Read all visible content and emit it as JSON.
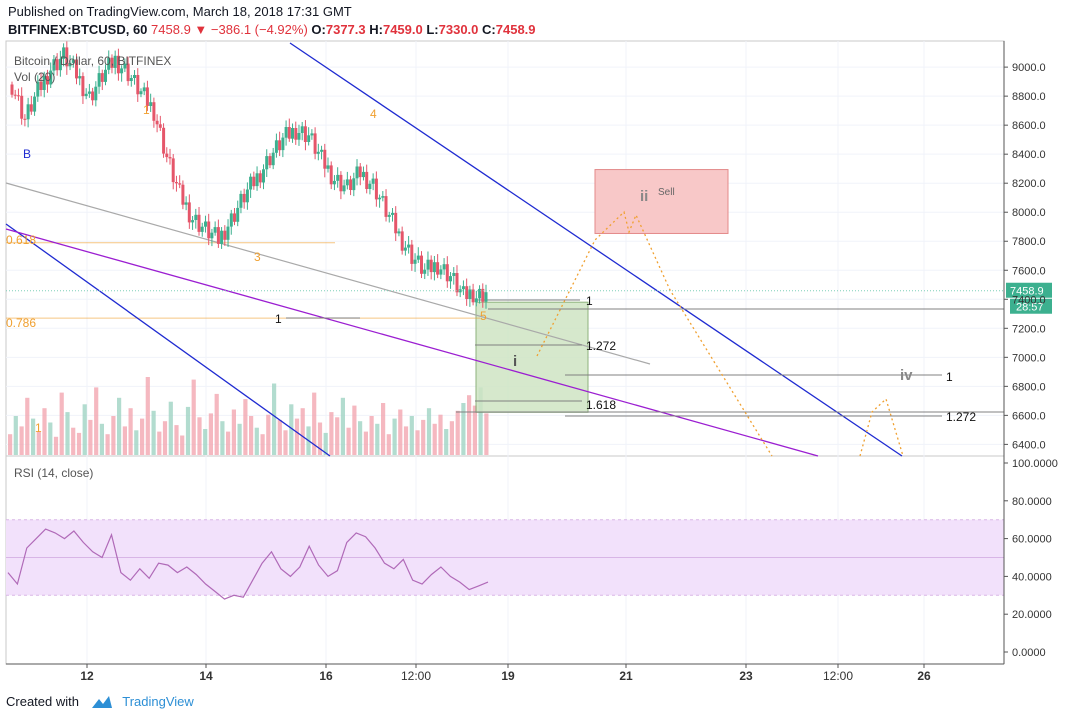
{
  "header": {
    "published": "Published on TradingView.com, March 18, 2018 17:31 GMT",
    "symbol": "BITFINEX:BTCUSD, 60",
    "price": "7458.9",
    "change": "−386.1 (−4.92%)",
    "ohlc": {
      "o_label": "O:",
      "o": "7377.3",
      "h_label": "H:",
      "h": "7459.0",
      "l_label": "L:",
      "l": "7330.0",
      "c_label": "C:",
      "c": "7458.9"
    }
  },
  "legend": {
    "main": "Bitcoin / Dollar, 60, BITFINEX",
    "volume": "Vol (20)",
    "rsi": "RSI (14, close)"
  },
  "footer": {
    "created_with": "Created with",
    "brand": "TradingView"
  },
  "colors": {
    "up": "#3cb08f",
    "down": "#e5566a",
    "trend_blue": "#1f2bd1",
    "purple": "#9b1ed1",
    "gray_line": "#a9a9a9",
    "fib_orange": "#f0a030",
    "sell_box": "#f8c8c8",
    "target_box": "#cfe5c4",
    "rsi_band": "#f2e1fb",
    "rsi_line": "#b06ab8",
    "price_tag": "#3cb08f"
  },
  "chart_data": {
    "type": "candlestick",
    "y_range": [
      6320,
      9180
    ],
    "y_ticks": [
      "9000.0",
      "8800.0",
      "8600.0",
      "8400.0",
      "8200.0",
      "8000.0",
      "7800.0",
      "7600.0",
      "7400.0",
      "7200.0",
      "7000.0",
      "6800.0",
      "6600.0",
      "6400.0"
    ],
    "x_ticks": [
      "12",
      "14",
      "16",
      "12:00",
      "19",
      "21",
      "23",
      "12:00",
      "26"
    ],
    "last_price_tag": "7458.9",
    "countdown_tag": "28:57",
    "wave_labels": [
      "B",
      "1",
      "3",
      "4",
      "5",
      "1",
      "i",
      "ii",
      "iv"
    ],
    "fib_labels": [
      {
        "text": "0.618",
        "price": 7790
      },
      {
        "text": "0.786",
        "price": 7270
      }
    ],
    "projection_levels": [
      {
        "text": "1",
        "price": 7395
      },
      {
        "text": "1.272",
        "price": 7085
      },
      {
        "text": "1.618",
        "price": 6690
      },
      {
        "text": "1",
        "price": 6880
      },
      {
        "text": "1.272",
        "price": 6605
      },
      {
        "text": "1",
        "price": 7280
      }
    ],
    "sell_zone": {
      "label": "Sell",
      "price_high": 8170,
      "price_low": 7950
    },
    "candles_close_path": [
      8880,
      8640,
      8830,
      8990,
      9080,
      8950,
      8790,
      8940,
      9050,
      8960,
      8820,
      8700,
      8380,
      8120,
      7960,
      7880,
      7810,
      7950,
      8110,
      8240,
      8380,
      8500,
      8570,
      8530,
      8360,
      8230,
      8170,
      8270,
      8190,
      8010,
      7840,
      7700,
      7590,
      7640,
      7560,
      7420,
      7458.9
    ],
    "rsi": {
      "name": "RSI (14, close)",
      "range": [
        0,
        100
      ],
      "band": [
        30,
        70
      ],
      "ticks": [
        "100.0000",
        "80.0000",
        "60.0000",
        "40.0000",
        "20.0000",
        "0.0000"
      ],
      "values": [
        42,
        36,
        55,
        60,
        65,
        63,
        60,
        64,
        58,
        53,
        50,
        62,
        42,
        38,
        44,
        39,
        47,
        46,
        42,
        45,
        41,
        36,
        32,
        28,
        30,
        29,
        38,
        47,
        53,
        44,
        40,
        45,
        56,
        46,
        40,
        43,
        58,
        63,
        61,
        55,
        47,
        44,
        49,
        38,
        36,
        41,
        45,
        40,
        37,
        33,
        35,
        37
      ]
    },
    "volume": {
      "name": "Vol (20)",
      "values": [
        16,
        30,
        22,
        44,
        28,
        18,
        36,
        25,
        14,
        48,
        33,
        21,
        17,
        39,
        27,
        52,
        24,
        16,
        30,
        44,
        22,
        36,
        19,
        28,
        60,
        34,
        18,
        26,
        41,
        23,
        15,
        37,
        58,
        29,
        20,
        32,
        47,
        26,
        18,
        35,
        24,
        43,
        30,
        21,
        16,
        31,
        55,
        27,
        19,
        39,
        28,
        36,
        22,
        48,
        25,
        17,
        33,
        29,
        44,
        21,
        38,
        26,
        18,
        30,
        24,
        40,
        16,
        28,
        35,
        22,
        30,
        19,
        27,
        36,
        24,
        31,
        20,
        26,
        34,
        40,
        46,
        38,
        52,
        32
      ]
    }
  }
}
